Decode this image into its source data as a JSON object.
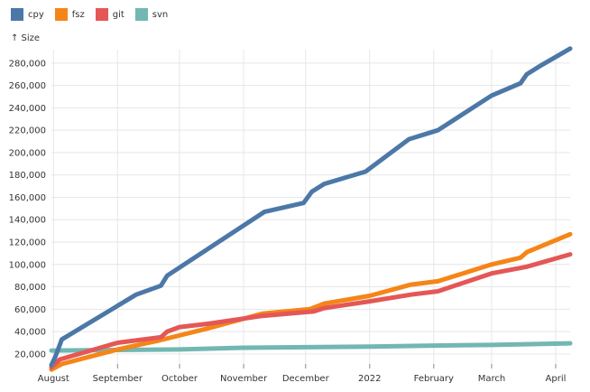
{
  "chart_data": {
    "type": "line",
    "ylabel": "↑ Size",
    "x_tick_labels": [
      "August",
      "September",
      "October",
      "November",
      "December",
      "2022",
      "February",
      "March",
      "April"
    ],
    "x_tick_dates": [
      "2021-08-01",
      "2021-09-01",
      "2021-10-01",
      "2021-11-01",
      "2021-12-01",
      "2022-01-01",
      "2022-02-01",
      "2022-03-01",
      "2022-04-01"
    ],
    "xlim": [
      "2021-07-31",
      "2022-04-08"
    ],
    "y_tick_labels": [
      "20,000",
      "40,000",
      "60,000",
      "80,000",
      "100,000",
      "120,000",
      "140,000",
      "160,000",
      "180,000",
      "200,000",
      "220,000",
      "240,000",
      "260,000",
      "280,000"
    ],
    "y_tick_values": [
      20000,
      40000,
      60000,
      80000,
      100000,
      120000,
      140000,
      160000,
      180000,
      200000,
      220000,
      240000,
      260000,
      280000
    ],
    "ylim": [
      11000,
      292000
    ],
    "grid": true,
    "legend_position": "top-left",
    "series": [
      {
        "name": "cpy",
        "color": "#4c78a8",
        "points": [
          [
            "2021-07-31",
            10000
          ],
          [
            "2021-08-02",
            18000
          ],
          [
            "2021-08-05",
            33000
          ],
          [
            "2021-09-10",
            73000
          ],
          [
            "2021-09-22",
            81000
          ],
          [
            "2021-09-25",
            90000
          ],
          [
            "2021-11-11",
            147000
          ],
          [
            "2021-11-30",
            155000
          ],
          [
            "2021-12-04",
            165000
          ],
          [
            "2021-12-10",
            172000
          ],
          [
            "2021-12-30",
            183000
          ],
          [
            "2022-01-20",
            212000
          ],
          [
            "2022-02-03",
            220000
          ],
          [
            "2022-03-01",
            251000
          ],
          [
            "2022-03-15",
            262000
          ],
          [
            "2022-03-18",
            270000
          ],
          [
            "2022-03-25",
            278000
          ],
          [
            "2022-04-08",
            293000
          ]
        ]
      },
      {
        "name": "fsz",
        "color": "#f58518",
        "points": [
          [
            "2021-07-31",
            6000
          ],
          [
            "2021-08-05",
            11000
          ],
          [
            "2021-09-01",
            24000
          ],
          [
            "2021-09-21",
            32000
          ],
          [
            "2021-10-15",
            43000
          ],
          [
            "2021-11-10",
            56000
          ],
          [
            "2021-12-03",
            60000
          ],
          [
            "2021-12-10",
            65000
          ],
          [
            "2022-01-01",
            72000
          ],
          [
            "2022-01-21",
            82000
          ],
          [
            "2022-02-03",
            85000
          ],
          [
            "2022-03-01",
            100000
          ],
          [
            "2022-03-15",
            106000
          ],
          [
            "2022-03-18",
            111000
          ],
          [
            "2022-04-08",
            127000
          ]
        ]
      },
      {
        "name": "git",
        "color": "#e45756",
        "points": [
          [
            "2021-07-31",
            8000
          ],
          [
            "2021-08-04",
            15000
          ],
          [
            "2021-09-01",
            30000
          ],
          [
            "2021-09-22",
            35000
          ],
          [
            "2021-09-25",
            40000
          ],
          [
            "2021-10-01",
            44000
          ],
          [
            "2021-10-15",
            47000
          ],
          [
            "2021-11-10",
            54000
          ],
          [
            "2021-12-05",
            58000
          ],
          [
            "2021-12-10",
            61000
          ],
          [
            "2022-01-01",
            67000
          ],
          [
            "2022-01-21",
            73000
          ],
          [
            "2022-02-03",
            76000
          ],
          [
            "2022-03-01",
            92000
          ],
          [
            "2022-03-18",
            98000
          ],
          [
            "2022-04-08",
            109000
          ]
        ]
      },
      {
        "name": "svn",
        "color": "#72b7b2",
        "points": [
          [
            "2021-07-31",
            23000
          ],
          [
            "2021-10-01",
            24000
          ],
          [
            "2021-11-01",
            25500
          ],
          [
            "2021-12-01",
            26000
          ],
          [
            "2022-01-01",
            26500
          ],
          [
            "2022-02-01",
            27500
          ],
          [
            "2022-03-01",
            28000
          ],
          [
            "2022-04-08",
            29500
          ]
        ]
      }
    ]
  }
}
